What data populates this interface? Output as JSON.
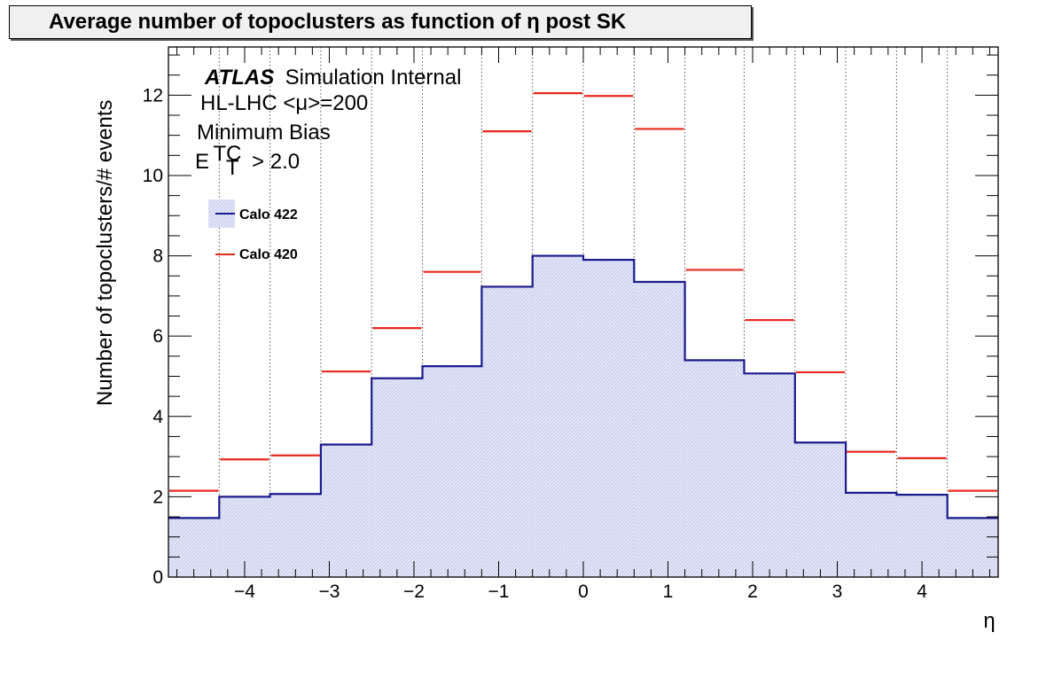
{
  "chart_data": {
    "type": "bar",
    "title": "Average number of topoclusters as function of η post SK",
    "xlabel": "η",
    "ylabel": "Number of topoclusters/# events",
    "xlim": [
      -4.9,
      4.9
    ],
    "ylim": [
      0,
      13.2
    ],
    "grid": "vertical dotted",
    "bin_edges": [
      -4.9,
      -4.3,
      -3.7,
      -3.1,
      -2.5,
      -1.9,
      -1.2,
      -0.6,
      0.0,
      0.6,
      1.2,
      1.9,
      2.5,
      3.1,
      3.7,
      4.3,
      4.9
    ],
    "x_ticks": [
      -4,
      -3,
      -2,
      -1,
      0,
      1,
      2,
      3,
      4
    ],
    "x_tick_labels": [
      "−4",
      "−3",
      "−2",
      "−1",
      "0",
      "1",
      "2",
      "3",
      "4"
    ],
    "y_ticks": [
      0,
      2,
      4,
      6,
      8,
      10,
      12
    ],
    "y_tick_labels": [
      "0",
      "2",
      "4",
      "6",
      "8",
      "10",
      "12"
    ],
    "series": [
      {
        "name": "Calo 422",
        "style": "filled-histogram",
        "color": "#1a1a8c",
        "fill": "#d8dcf5",
        "values": [
          1.47,
          2.0,
          2.07,
          3.3,
          4.95,
          5.25,
          7.23,
          8.0,
          7.9,
          7.35,
          5.4,
          5.07,
          3.35,
          2.1,
          2.05,
          1.47
        ]
      },
      {
        "name": "Calo 420",
        "style": "horizontal-markers",
        "color": "#e8281e",
        "values": [
          2.15,
          2.93,
          3.03,
          5.12,
          6.2,
          7.6,
          11.1,
          12.05,
          11.98,
          11.16,
          7.65,
          6.4,
          5.1,
          3.12,
          2.96,
          2.15
        ]
      }
    ],
    "annotations": {
      "atlas": "ATLAS",
      "atlas_suffix": "Simulation Internal",
      "line2": "HL-LHC <μ>=200",
      "line3": "Minimum Bias",
      "cut_main": "E",
      "cut_sup": "TC",
      "cut_sub": "T",
      "cut_rest": "> 2.0"
    },
    "legend_position": "upper-left"
  }
}
